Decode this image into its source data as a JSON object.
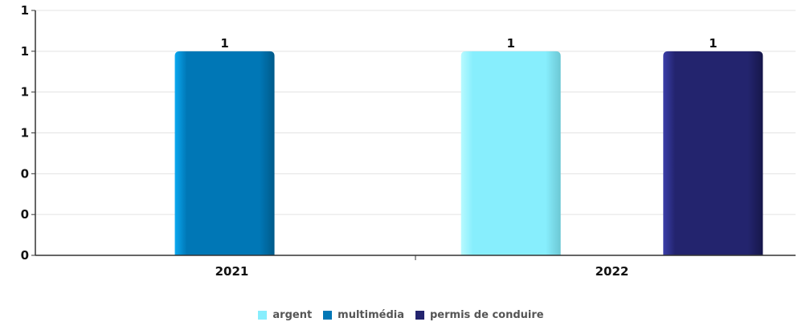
{
  "chart_data": {
    "type": "bar",
    "title": "",
    "xlabel": "",
    "ylabel": "",
    "categories": [
      "2021",
      "2022"
    ],
    "y_tick_labels": [
      "0",
      "0",
      "0",
      "1",
      "1",
      "1",
      "1"
    ],
    "ylim": [
      0,
      1.2
    ],
    "grid": true,
    "legend_position": "bottom-center",
    "series": [
      {
        "name": "argent",
        "color": "#87EEFD",
        "values": [
          null,
          1
        ]
      },
      {
        "name": "multimédia",
        "color": "#0077B6",
        "values": [
          1,
          null
        ]
      },
      {
        "name": "permis de conduire",
        "color": "#23246E",
        "values": [
          null,
          1
        ]
      }
    ],
    "data_labels": [
      "1",
      "1",
      "1"
    ]
  }
}
